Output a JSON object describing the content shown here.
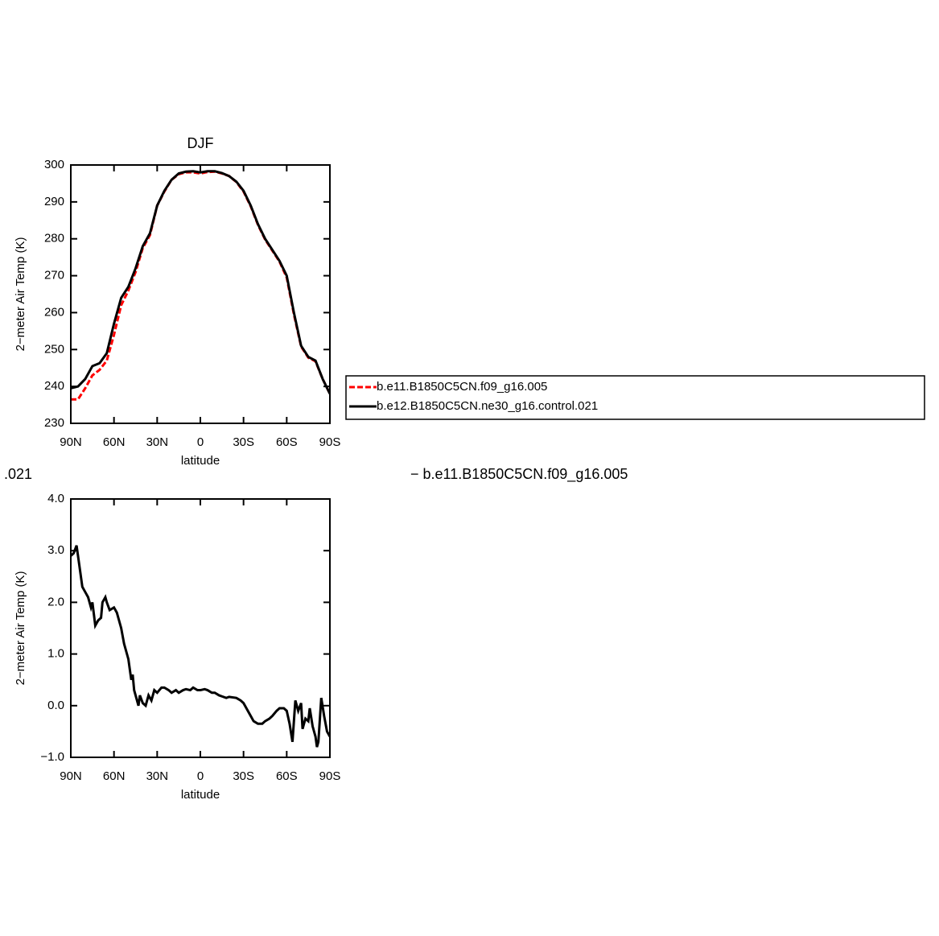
{
  "chart_data": [
    {
      "type": "line",
      "title": "DJF",
      "xlabel": "latitude",
      "ylabel": "2−meter Air Temp (K)",
      "x": [
        90,
        85,
        80,
        75,
        70,
        65,
        60,
        55,
        50,
        45,
        40,
        35,
        30,
        25,
        20,
        15,
        10,
        5,
        0,
        -5,
        -10,
        -15,
        -20,
        -25,
        -30,
        -35,
        -40,
        -45,
        -50,
        -55,
        -60,
        -65,
        -70,
        -75,
        -80,
        -85,
        -90
      ],
      "series": [
        {
          "name": "b.e11.B1850C5CN.f09_g16.005",
          "color": "#ff0000",
          "dashed": true,
          "values": [
            236.5,
            236.5,
            239.5,
            243,
            244.5,
            247,
            254,
            262,
            266,
            271,
            277.5,
            281,
            289,
            292.8,
            296,
            297.5,
            298,
            298,
            297.7,
            298.1,
            298.2,
            297.7,
            297,
            295.4,
            292.8,
            288.8,
            283.8,
            279.8,
            276.8,
            273.8,
            269.5,
            259.5,
            250.8,
            247.8,
            246.8,
            242,
            238
          ]
        },
        {
          "name": "b.e12.B1850C5CN.ne30_g16.control.021",
          "color": "#000000",
          "dashed": false,
          "values": [
            239.5,
            240,
            242,
            245.5,
            246.3,
            249,
            257,
            264,
            267,
            272,
            278,
            281.5,
            289,
            293,
            296,
            297.7,
            298.2,
            298.3,
            298,
            298.3,
            298.3,
            297.8,
            297,
            295.5,
            293,
            289,
            284,
            280,
            277,
            274,
            270,
            260,
            251,
            248,
            247,
            242,
            238
          ]
        }
      ],
      "xlim": [
        90,
        -90
      ],
      "xticks": [
        {
          "value": 90,
          "label": "90N"
        },
        {
          "value": 60,
          "label": "60N"
        },
        {
          "value": 30,
          "label": "30N"
        },
        0,
        {
          "value": -30,
          "label": "30S"
        },
        {
          "value": -60,
          "label": "60S"
        },
        {
          "value": -90,
          "label": "90S"
        }
      ],
      "ylim": [
        230,
        300
      ],
      "yticks": [
        230,
        240,
        250,
        260,
        270,
        280,
        290,
        300
      ],
      "legend": "right"
    },
    {
      "type": "line",
      "title_left": ".021",
      "title_right": "− b.e11.B1850C5CN.f09_g16.005",
      "xlabel": "latitude",
      "ylabel": "2−meter Air Temp (K)",
      "x": [
        90,
        88,
        86,
        84,
        82,
        80,
        78,
        76,
        75,
        73,
        71,
        69,
        68,
        66,
        65,
        63,
        60,
        58,
        55,
        53,
        50,
        48,
        47,
        46,
        45,
        43,
        42,
        40,
        38,
        36,
        34,
        32,
        30,
        27,
        25,
        22,
        20,
        17,
        15,
        12,
        10,
        7,
        5,
        2,
        0,
        -3,
        -5,
        -8,
        -10,
        -13,
        -15,
        -18,
        -20,
        -25,
        -28,
        -30,
        -33,
        -35,
        -37,
        -40,
        -43,
        -45,
        -48,
        -50,
        -53,
        -55,
        -58,
        -60,
        -62,
        -64,
        -66,
        -68,
        -70,
        -71,
        -73,
        -75,
        -76,
        -78,
        -80,
        -81,
        -82,
        -84,
        -86,
        -88,
        -90
      ],
      "series": [
        {
          "color": "#000000",
          "dashed": false,
          "values": [
            2.9,
            2.95,
            3.1,
            2.7,
            2.3,
            2.2,
            2.1,
            1.9,
            2.0,
            1.55,
            1.65,
            1.7,
            2.0,
            2.1,
            2.0,
            1.85,
            1.9,
            1.8,
            1.5,
            1.2,
            0.9,
            0.5,
            0.6,
            0.3,
            0.2,
            0.0,
            0.2,
            0.05,
            0.0,
            0.2,
            0.1,
            0.3,
            0.25,
            0.35,
            0.35,
            0.3,
            0.25,
            0.3,
            0.25,
            0.3,
            0.32,
            0.3,
            0.35,
            0.3,
            0.3,
            0.32,
            0.3,
            0.25,
            0.25,
            0.2,
            0.18,
            0.15,
            0.17,
            0.15,
            0.1,
            0.05,
            -0.1,
            -0.2,
            -0.3,
            -0.35,
            -0.35,
            -0.3,
            -0.25,
            -0.2,
            -0.1,
            -0.05,
            -0.05,
            -0.1,
            -0.35,
            -0.7,
            0.1,
            -0.1,
            0.05,
            -0.45,
            -0.25,
            -0.3,
            -0.05,
            -0.4,
            -0.6,
            -0.8,
            -0.7,
            0.15,
            -0.2,
            -0.5,
            -0.6
          ]
        }
      ],
      "xlim": [
        90,
        -90
      ],
      "xticks": [
        {
          "value": 90,
          "label": "90N"
        },
        {
          "value": 60,
          "label": "60N"
        },
        {
          "value": 30,
          "label": "30N"
        },
        0,
        {
          "value": -30,
          "label": "30S"
        },
        {
          "value": -60,
          "label": "60S"
        },
        {
          "value": -90,
          "label": "90S"
        }
      ],
      "ylim": [
        -1,
        4
      ],
      "yticks": [
        {
          "value": -1,
          "label": "−1.0"
        },
        {
          "value": 0,
          "label": "0.0"
        },
        {
          "value": 1,
          "label": "1.0"
        },
        {
          "value": 2,
          "label": "2.0"
        },
        {
          "value": 3,
          "label": "3.0"
        },
        {
          "value": 4,
          "label": "4.0"
        }
      ]
    }
  ]
}
